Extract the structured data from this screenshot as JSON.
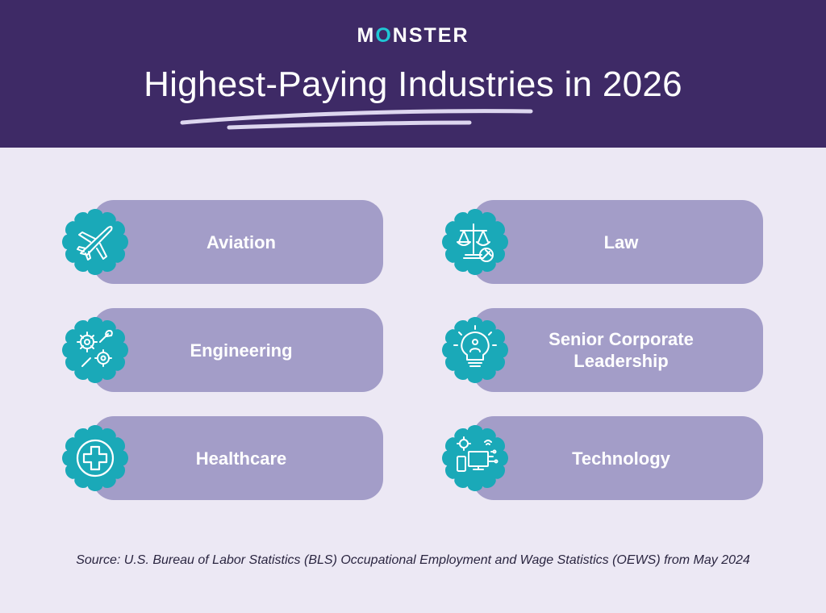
{
  "header": {
    "brand_prefix": "M",
    "brand_o": "O",
    "brand_suffix": "NSTER",
    "title": "Highest-Paying Industries in 2026"
  },
  "industries": [
    {
      "label": "Aviation",
      "icon": "airplane-icon"
    },
    {
      "label": "Law",
      "icon": "scales-of-justice-icon"
    },
    {
      "label": "Engineering",
      "icon": "gear-wrench-icon"
    },
    {
      "label": "Senior Corporate\nLeadership",
      "icon": "lightbulb-person-icon"
    },
    {
      "label": "Healthcare",
      "icon": "medical-cross-icon"
    },
    {
      "label": "Technology",
      "icon": "devices-network-icon"
    }
  ],
  "footer": {
    "source": "Source: U.S. Bureau of Labor Statistics (BLS) Occupational Employment and Wage Statistics (OEWS) from May 2024"
  },
  "colors": {
    "header_bg": "#3e2a66",
    "page_bg": "#ece8f4",
    "card_bg": "#a39dc8",
    "badge_teal": "#1aa9b8",
    "accent": "#1fc7d4"
  }
}
